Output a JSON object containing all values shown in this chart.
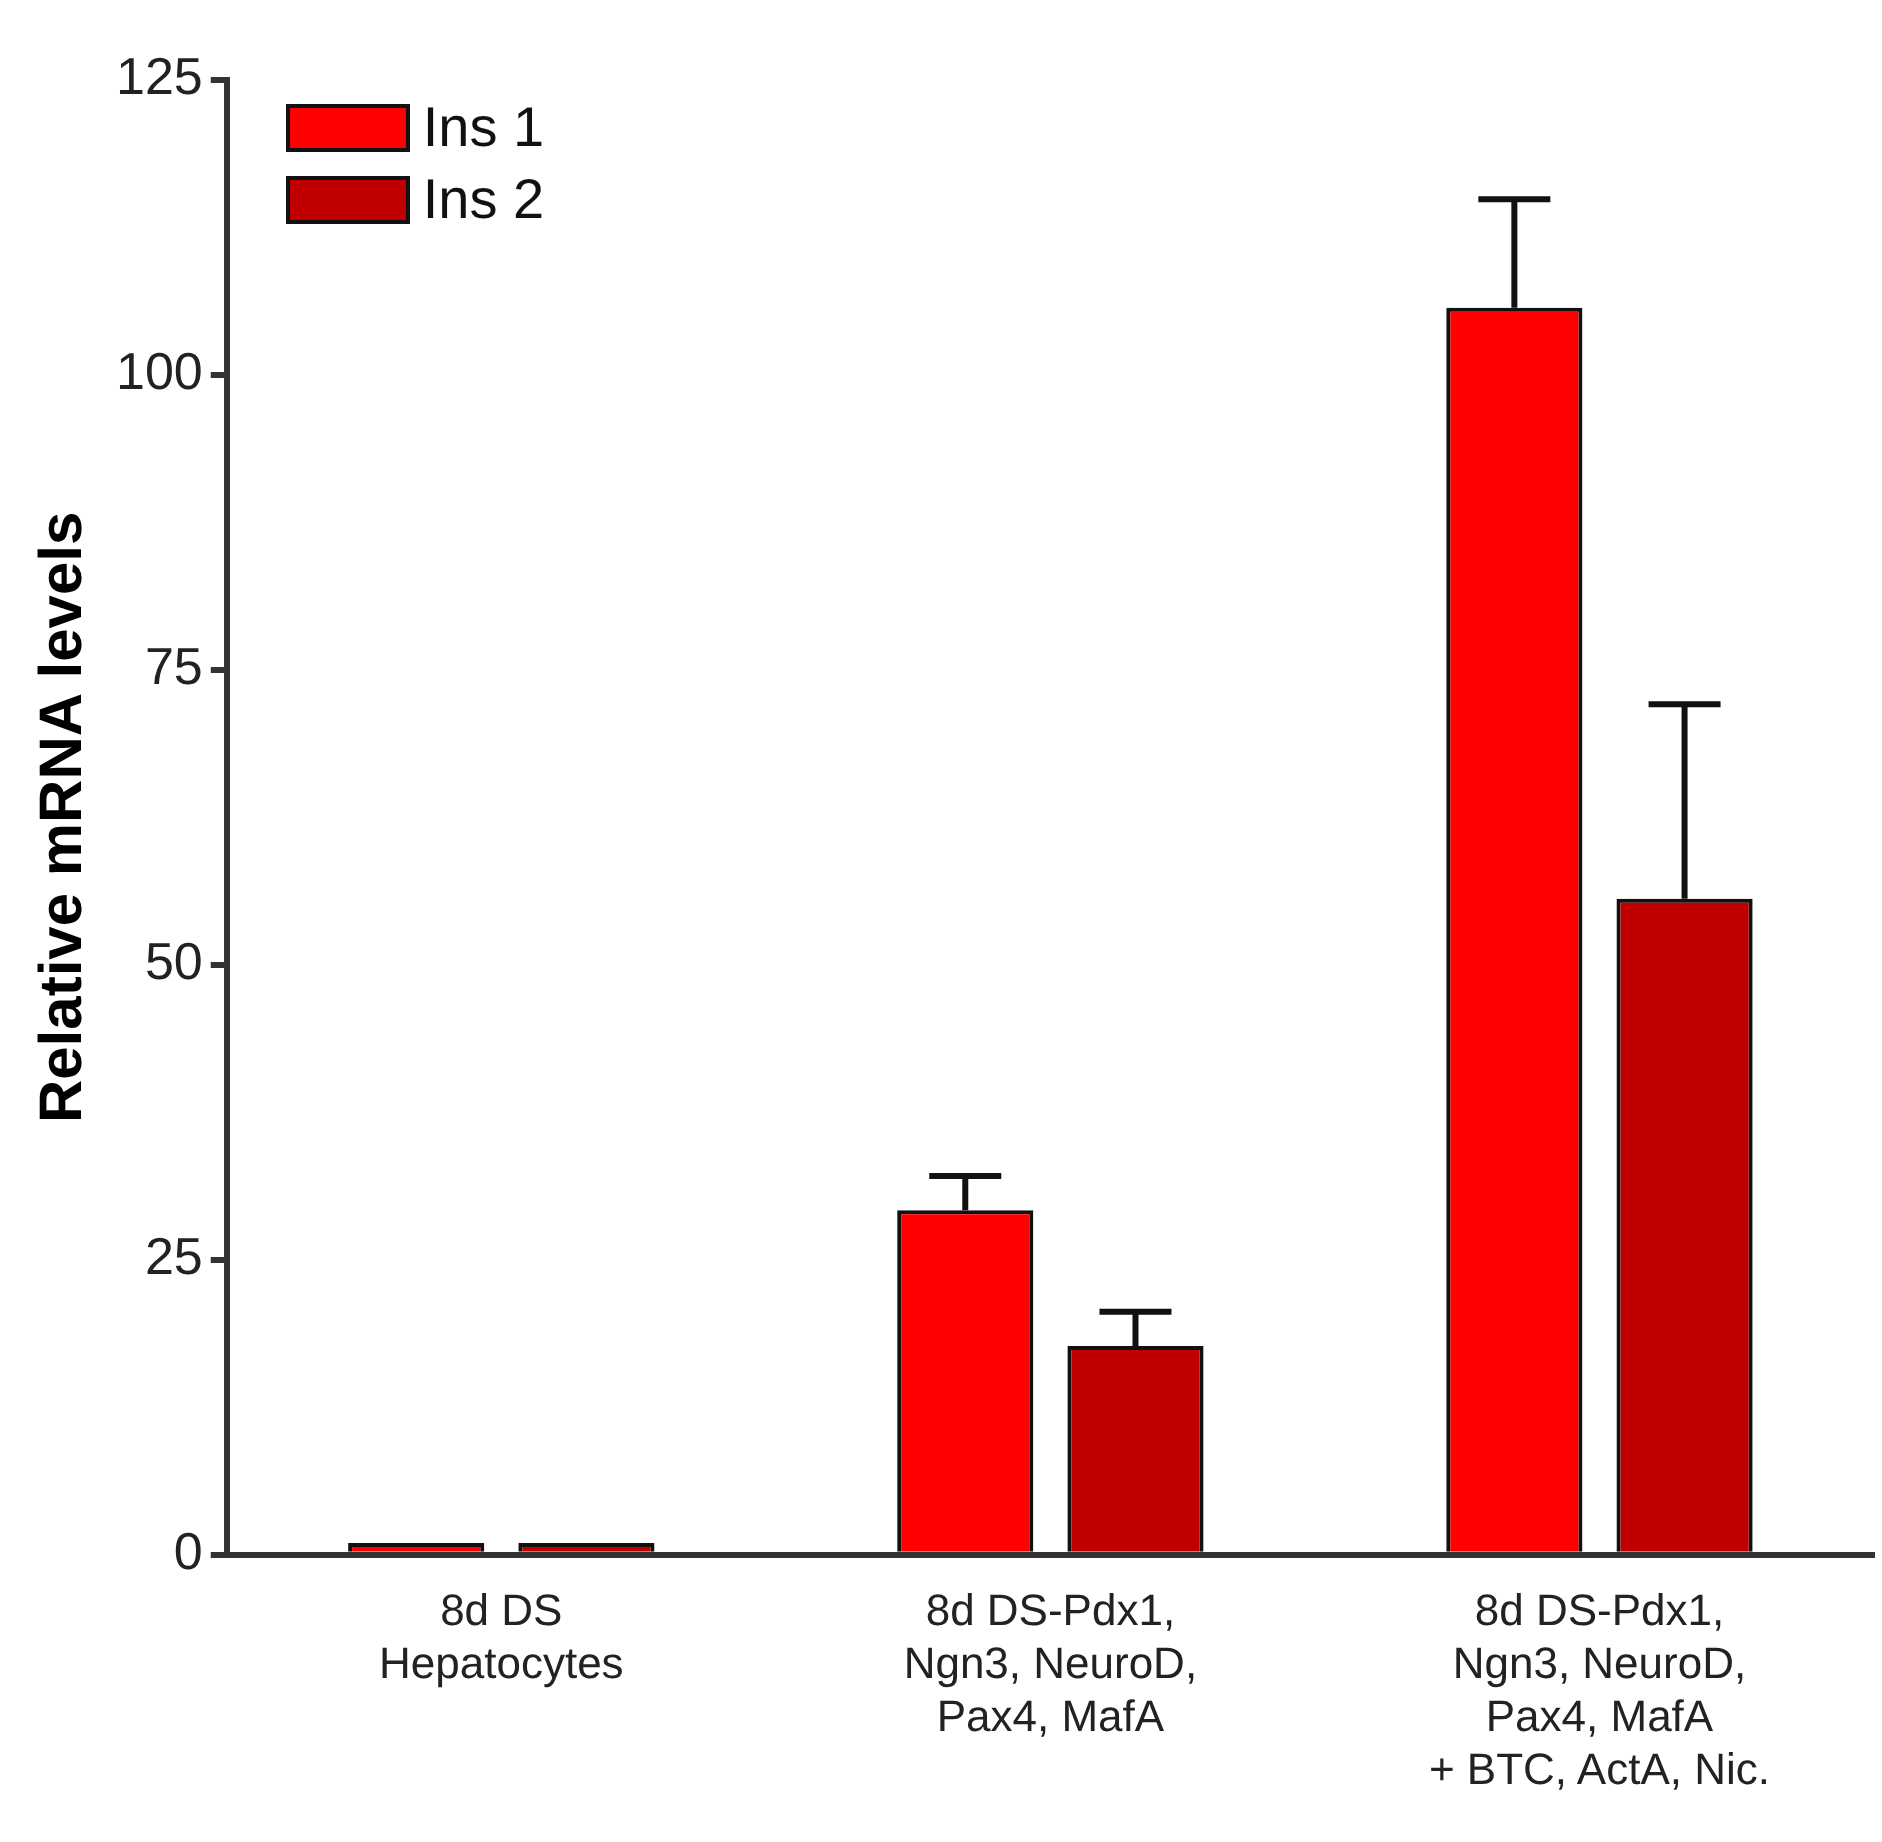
{
  "chart_data": {
    "type": "bar",
    "ylabel": "Relative mRNA levels",
    "categories": [
      "8d DS\nHepatocytes",
      "8d DS-Pdx1,\nNgn3, NeuroD,\nPax4, MafA",
      "8d DS-Pdx1,\nNgn3, NeuroD,\nPax4, MafA\n+ BTC, ActA, Nic."
    ],
    "series": [
      {
        "name": "Ins 1",
        "color": "#ff0000",
        "values": [
          1,
          29.2,
          105.7
        ],
        "errors": [
          null,
          2.9,
          9.2
        ]
      },
      {
        "name": "Ins 2",
        "color": "#c00000",
        "values": [
          1,
          17.7,
          55.6
        ],
        "errors": [
          null,
          2.9,
          16.5
        ]
      }
    ],
    "ylim": [
      0,
      125
    ],
    "yticks": [
      0,
      25,
      50,
      75,
      100,
      125
    ],
    "grid": false,
    "legend": "top left"
  }
}
